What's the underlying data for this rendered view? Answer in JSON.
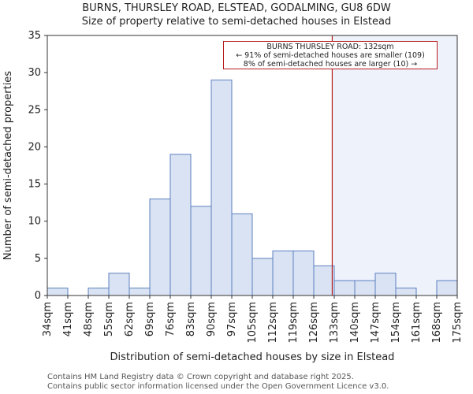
{
  "title_line1": "BURNS, THURSLEY ROAD, ELSTEAD, GODALMING, GU8 6DW",
  "title_line2": "Size of property relative to semi-detached houses in Elstead",
  "footer_line1": "Contains HM Land Registry data © Crown copyright and database right 2025.",
  "footer_line2": "Contains public sector information licensed under the Open Government Licence v3.0.",
  "annotation": {
    "line1": "BURNS THURSLEY ROAD: 132sqm",
    "line2": "← 91% of semi-detached houses are smaller (109)",
    "line3": "8% of semi-detached houses are larger (10) →"
  },
  "colors": {
    "bar_fill": "#dae3f3",
    "bar_edge": "#5b7fbf",
    "highlight_region": "#eef2fb",
    "marker_line": "#b71c1c"
  },
  "chart_data": {
    "type": "bar",
    "xlabel": "Distribution of semi-detached houses by size in Elstead",
    "ylabel": "Number of semi-detached properties",
    "ylim": [
      0,
      35
    ],
    "yticks": [
      0,
      5,
      10,
      15,
      20,
      25,
      30,
      35
    ],
    "bin_start": 34,
    "bin_width": 7.05,
    "bin_labels": [
      "34sqm",
      "41sqm",
      "48sqm",
      "55sqm",
      "62sqm",
      "69sqm",
      "76sqm",
      "83sqm",
      "90sqm",
      "97sqm",
      "105sqm",
      "112sqm",
      "119sqm",
      "126sqm",
      "133sqm",
      "140sqm",
      "147sqm",
      "154sqm",
      "161sqm",
      "168sqm",
      "175sqm"
    ],
    "values": [
      1,
      0,
      1,
      3,
      1,
      13,
      19,
      12,
      29,
      11,
      5,
      6,
      6,
      4,
      2,
      2,
      3,
      1,
      0,
      2
    ],
    "marker_value": 132,
    "grid": false,
    "legend": "none"
  }
}
